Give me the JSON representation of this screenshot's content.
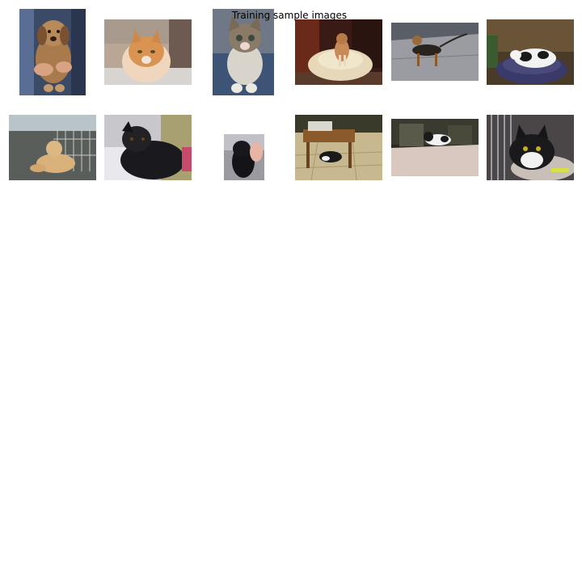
{
  "figure": {
    "title": "Training sample images"
  },
  "images": [
    {
      "subject": "puppy held by person",
      "label": "dog"
    },
    {
      "subject": "orange tabby cat",
      "label": "cat"
    },
    {
      "subject": "tabby kitten",
      "label": "cat"
    },
    {
      "subject": "dog in pet bed",
      "label": "dog"
    },
    {
      "subject": "dog on pavement",
      "label": "dog"
    },
    {
      "subject": "black and white cat on cushion",
      "label": "cat"
    },
    {
      "subject": "golden puppy behind fence",
      "label": "dog"
    },
    {
      "subject": "black puppy",
      "label": "dog"
    },
    {
      "subject": "black puppy held",
      "label": "dog"
    },
    {
      "subject": "cat under table",
      "label": "cat"
    },
    {
      "subject": "black and white cat on floor",
      "label": "cat"
    },
    {
      "subject": "black and white cat lying",
      "label": "cat"
    }
  ]
}
